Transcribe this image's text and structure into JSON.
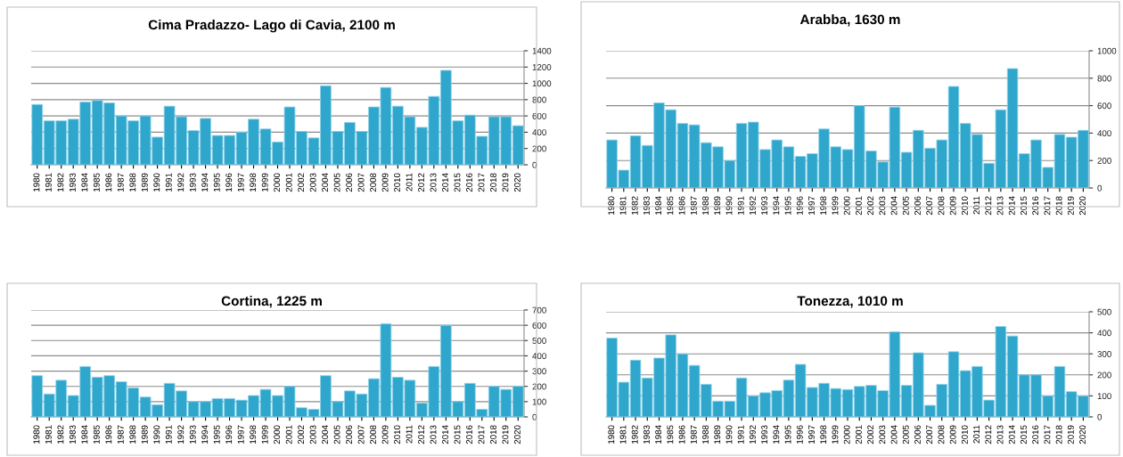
{
  "chart_data": [
    {
      "type": "bar",
      "title": "Cima Pradazzo- Lago di Cavia, 2100 m",
      "color": "#2fa6cb",
      "grid": "y",
      "categories": [
        "1980",
        "1981",
        "1982",
        "1983",
        "1984",
        "1985",
        "1986",
        "1987",
        "1988",
        "1989",
        "1990",
        "1991",
        "1992",
        "1993",
        "1994",
        "1995",
        "1996",
        "1997",
        "1998",
        "1999",
        "2000",
        "2001",
        "2002",
        "2003",
        "2004",
        "2005",
        "2006",
        "2007",
        "2008",
        "2009",
        "2010",
        "2011",
        "2012",
        "2013",
        "2014",
        "2015",
        "2016",
        "2017",
        "2018",
        "2019",
        "2020"
      ],
      "values": [
        740,
        540,
        540,
        560,
        770,
        790,
        760,
        600,
        540,
        600,
        340,
        720,
        590,
        420,
        570,
        360,
        360,
        400,
        560,
        440,
        280,
        710,
        410,
        330,
        970,
        410,
        520,
        410,
        710,
        950,
        720,
        590,
        460,
        840,
        1160,
        540,
        610,
        350,
        590,
        590,
        480
      ],
      "ylim": [
        0,
        1400
      ],
      "yticks": [
        0,
        200,
        400,
        600,
        800,
        1000,
        1200,
        1400
      ]
    },
    {
      "type": "bar",
      "title": "Arabba, 1630 m",
      "color": "#2fa6cb",
      "grid": "y",
      "categories": [
        "1980",
        "1981",
        "1982",
        "1983",
        "1984",
        "1985",
        "1986",
        "1987",
        "1988",
        "1989",
        "1990",
        "1991",
        "1992",
        "1993",
        "1994",
        "1995",
        "1996",
        "1997",
        "1998",
        "1999",
        "2000",
        "2001",
        "2002",
        "2003",
        "2004",
        "2005",
        "2006",
        "2007",
        "2008",
        "2009",
        "2010",
        "2011",
        "2012",
        "2013",
        "2014",
        "2015",
        "2016",
        "2017",
        "2018",
        "2019",
        "2020"
      ],
      "values": [
        350,
        130,
        380,
        310,
        620,
        570,
        470,
        460,
        330,
        300,
        200,
        470,
        480,
        280,
        350,
        300,
        230,
        250,
        430,
        300,
        280,
        600,
        270,
        190,
        590,
        260,
        420,
        290,
        350,
        740,
        470,
        390,
        180,
        570,
        870,
        250,
        350,
        150,
        390,
        370,
        420
      ],
      "ylim": [
        0,
        1000
      ],
      "yticks": [
        0,
        200,
        400,
        600,
        800,
        1000
      ]
    },
    {
      "type": "bar",
      "title": "Cortina, 1225 m",
      "color": "#2fa6cb",
      "grid": "y",
      "categories": [
        "1980",
        "1981",
        "1982",
        "1983",
        "1984",
        "1985",
        "1986",
        "1987",
        "1988",
        "1989",
        "1990",
        "1991",
        "1992",
        "1993",
        "1994",
        "1995",
        "1996",
        "1997",
        "1998",
        "1999",
        "2000",
        "2001",
        "2002",
        "2003",
        "2004",
        "2005",
        "2006",
        "2007",
        "2008",
        "2009",
        "2010",
        "2011",
        "2012",
        "2013",
        "2014",
        "2015",
        "2016",
        "2017",
        "2018",
        "2019",
        "2020"
      ],
      "values": [
        270,
        150,
        240,
        140,
        330,
        260,
        270,
        230,
        190,
        130,
        80,
        220,
        170,
        100,
        100,
        120,
        120,
        110,
        140,
        180,
        140,
        200,
        60,
        50,
        270,
        100,
        170,
        150,
        250,
        610,
        260,
        240,
        90,
        330,
        600,
        100,
        220,
        50,
        200,
        180,
        200
      ],
      "ylim": [
        0,
        700
      ],
      "yticks": [
        0,
        100,
        200,
        300,
        400,
        500,
        600,
        700
      ]
    },
    {
      "type": "bar",
      "title": "Tonezza, 1010 m",
      "color": "#2fa6cb",
      "grid": "y",
      "categories": [
        "1980",
        "1981",
        "1982",
        "1983",
        "1984",
        "1985",
        "1986",
        "1987",
        "1988",
        "1989",
        "1990",
        "1991",
        "1992",
        "1993",
        "1994",
        "1995",
        "1996",
        "1997",
        "1998",
        "1999",
        "2000",
        "2001",
        "2002",
        "2003",
        "2004",
        "2005",
        "2006",
        "2007",
        "2008",
        "2009",
        "2010",
        "2011",
        "2012",
        "2013",
        "2014",
        "2015",
        "2016",
        "2017",
        "2018",
        "2019",
        "2020"
      ],
      "values": [
        375,
        165,
        270,
        185,
        280,
        390,
        300,
        245,
        155,
        75,
        75,
        185,
        100,
        115,
        125,
        175,
        250,
        140,
        160,
        135,
        130,
        145,
        150,
        125,
        405,
        150,
        305,
        55,
        155,
        310,
        220,
        240,
        80,
        430,
        385,
        200,
        200,
        100,
        240,
        120,
        100
      ],
      "ylim": [
        0,
        500
      ],
      "yticks": [
        0,
        100,
        200,
        300,
        400,
        500
      ]
    }
  ]
}
